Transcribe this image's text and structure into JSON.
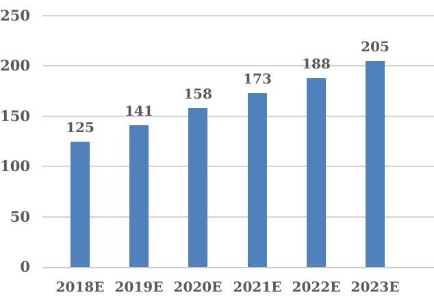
{
  "chart_data": {
    "type": "bar",
    "title": "",
    "xlabel": "",
    "ylabel": "",
    "categories": [
      "2018E",
      "2019E",
      "2020E",
      "2021E",
      "2022E",
      "2023E"
    ],
    "values": [
      125,
      141,
      158,
      173,
      188,
      205
    ],
    "data_labels": [
      "125",
      "141",
      "158",
      "173",
      "188",
      "205"
    ],
    "ylim": [
      0,
      250
    ],
    "yticks": [
      0,
      50,
      100,
      150,
      200,
      250
    ],
    "ytick_labels": [
      "0",
      "50",
      "100",
      "150",
      "200",
      "250"
    ],
    "grid": true,
    "legend": false,
    "colors": {
      "bar_fill": "#4f81bd",
      "gridline": "#d3d3d3",
      "axis_line": "#c9c9c9",
      "label_text": "#595959",
      "background": "#ffffff"
    }
  }
}
